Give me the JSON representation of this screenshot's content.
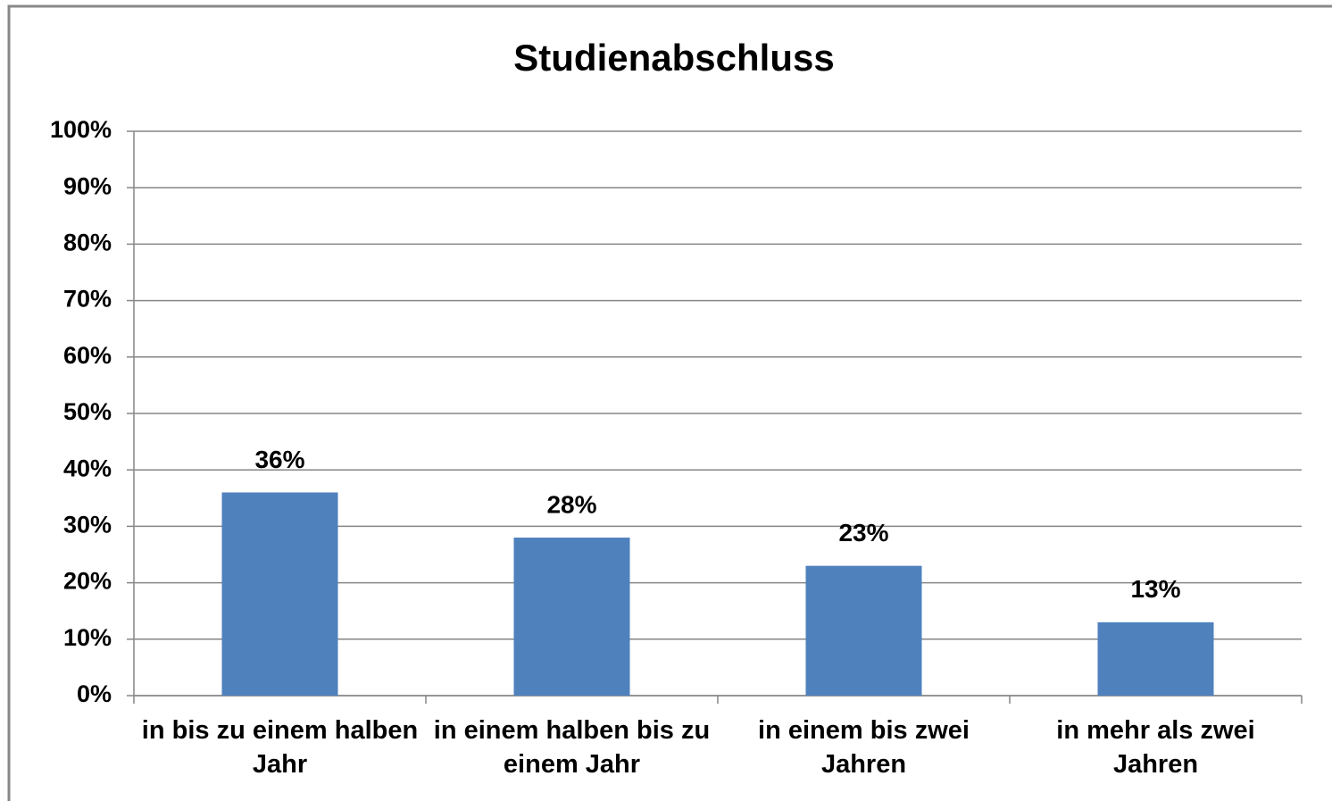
{
  "chart_data": {
    "type": "bar",
    "title": "Studienabschluss",
    "categories": [
      "in bis zu einem halben Jahr",
      "in einem halben bis zu einem Jahr",
      "in einem bis zwei Jahren",
      "in mehr als zwei Jahren"
    ],
    "values": [
      36,
      28,
      23,
      13
    ],
    "value_labels": [
      "36%",
      "28%",
      "23%",
      "13%"
    ],
    "color": "#4f81bd",
    "ylim": [
      0,
      100
    ],
    "yticks": [
      {
        "value": 0,
        "label": "0%"
      },
      {
        "value": 10,
        "label": "10%"
      },
      {
        "value": 20,
        "label": "20%"
      },
      {
        "value": 30,
        "label": "30%"
      },
      {
        "value": 40,
        "label": "40%"
      },
      {
        "value": 50,
        "label": "50%"
      },
      {
        "value": 60,
        "label": "60%"
      },
      {
        "value": 70,
        "label": "70%"
      },
      {
        "value": 80,
        "label": "80%"
      },
      {
        "value": 90,
        "label": "90%"
      },
      {
        "value": 100,
        "label": "100%"
      }
    ],
    "grid": true
  }
}
